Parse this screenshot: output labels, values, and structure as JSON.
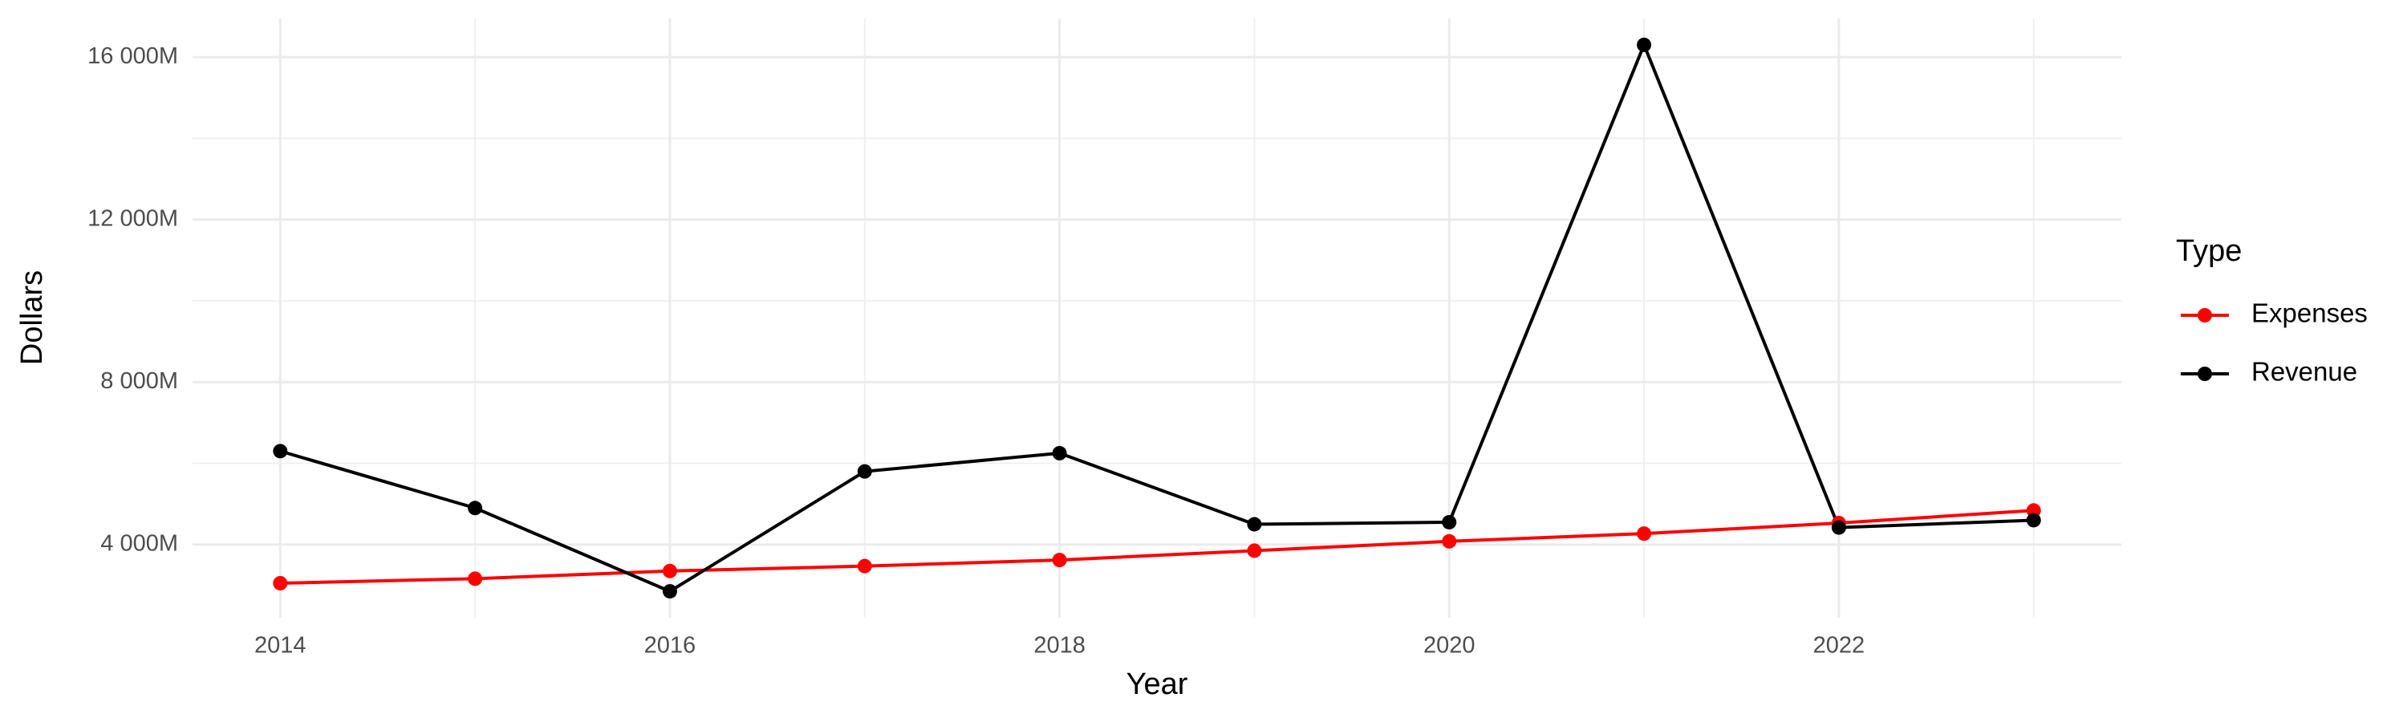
{
  "chart_data": {
    "type": "line",
    "x_label": "Year",
    "y_label": "Dollars",
    "legend_title": "Type",
    "legend_position": "right",
    "grid": true,
    "x": [
      2014,
      2015,
      2016,
      2017,
      2018,
      2019,
      2020,
      2021,
      2022,
      2023
    ],
    "series": [
      {
        "name": "Expenses",
        "color": "#ff0000",
        "values": [
          3050,
          3160,
          3350,
          3470,
          3620,
          3850,
          4080,
          4270,
          4530,
          4840
        ]
      },
      {
        "name": "Revenue",
        "color": "#000000",
        "values": [
          6300,
          4900,
          2850,
          5800,
          6250,
          4500,
          4550,
          16300,
          4420,
          4600
        ]
      }
    ],
    "xlim": [
      2013.55,
      2023.45
    ],
    "xticks": [
      2014,
      2016,
      2018,
      2020,
      2022
    ],
    "ylim": [
      2200,
      16950
    ],
    "yticks": [
      {
        "value": 4000,
        "label": "4 000M"
      },
      {
        "value": 8000,
        "label": "8 000M"
      },
      {
        "value": 12000,
        "label": "12 000M"
      },
      {
        "value": 16000,
        "label": "16 000M"
      }
    ]
  }
}
